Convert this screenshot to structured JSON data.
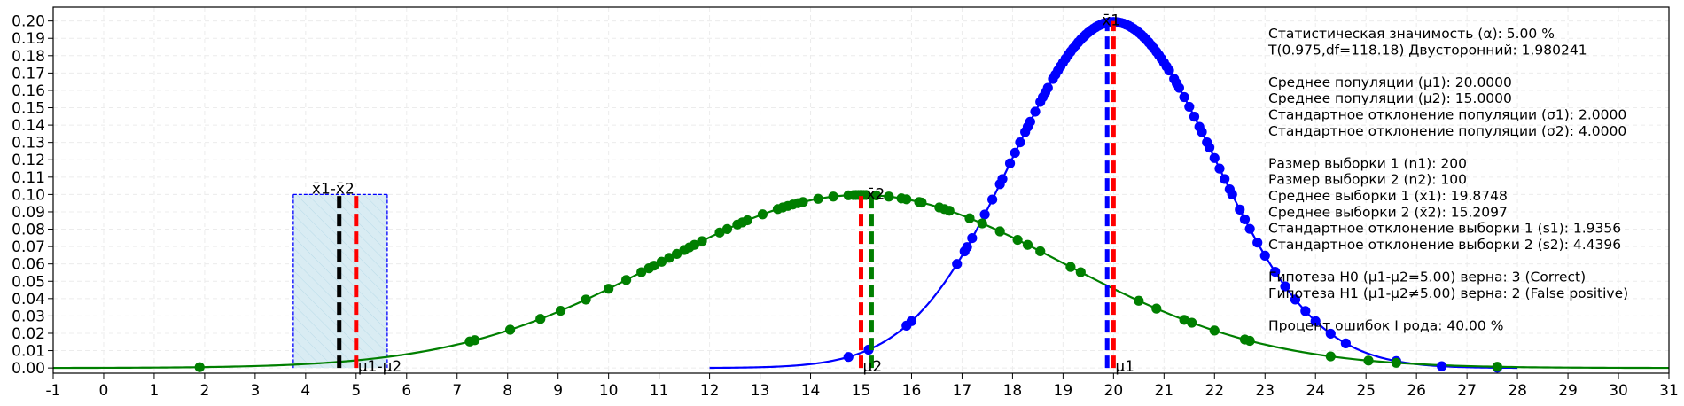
{
  "chart_data": {
    "type": "line",
    "title": "",
    "xlabel": "",
    "ylabel": "",
    "xlim": [
      -1,
      31
    ],
    "ylim": [
      -0.003,
      0.208
    ],
    "x_ticks": [
      "-1",
      "0",
      "1",
      "2",
      "3",
      "4",
      "5",
      "6",
      "7",
      "8",
      "9",
      "10",
      "11",
      "12",
      "13",
      "14",
      "15",
      "16",
      "17",
      "18",
      "19",
      "20",
      "21",
      "22",
      "23",
      "24",
      "25",
      "26",
      "27",
      "28",
      "29",
      "30",
      "31"
    ],
    "y_ticks": [
      "0.00",
      "0.01",
      "0.02",
      "0.03",
      "0.04",
      "0.05",
      "0.06",
      "0.07",
      "0.08",
      "0.09",
      "0.10",
      "0.11",
      "0.12",
      "0.13",
      "0.14",
      "0.15",
      "0.16",
      "0.17",
      "0.18",
      "0.19",
      "0.20"
    ],
    "grid": true,
    "series": [
      {
        "kind": "normal-curve",
        "color": "#0000ff",
        "mean": 20.0,
        "sd": 2.0,
        "range": [
          12,
          28
        ]
      },
      {
        "kind": "normal-curve",
        "color": "#007f00",
        "mean": 15.0,
        "sd": 4.0,
        "range": [
          -1,
          31
        ]
      },
      {
        "kind": "samples",
        "color": "#0000ff",
        "mean": 20.0,
        "sd": 2.0,
        "x": [
          14.75,
          15.15,
          15.9,
          16.0,
          16.9,
          17.05,
          17.1,
          17.2,
          17.45,
          17.6,
          17.75,
          17.8,
          17.95,
          18.05,
          18.15,
          18.25,
          18.3,
          18.35,
          18.45,
          18.55,
          18.6,
          18.65,
          18.7,
          18.8,
          18.85,
          18.9,
          18.95,
          19.0,
          19.05,
          19.1,
          19.15,
          19.2,
          19.25,
          19.3,
          19.35,
          19.4,
          19.45,
          19.5,
          19.55,
          19.6,
          19.65,
          19.7,
          19.75,
          19.8,
          19.85,
          19.9,
          19.95,
          20.0,
          20.05,
          20.1,
          20.15,
          20.2,
          20.25,
          20.3,
          20.35,
          20.4,
          20.45,
          20.5,
          20.55,
          20.6,
          20.65,
          20.7,
          20.75,
          20.8,
          20.85,
          20.9,
          20.95,
          21.0,
          21.05,
          21.1,
          21.2,
          21.25,
          21.3,
          21.4,
          21.5,
          21.6,
          21.7,
          21.75,
          21.85,
          21.9,
          22.0,
          22.1,
          22.2,
          22.3,
          22.35,
          22.5,
          22.6,
          22.7,
          22.85,
          23.0,
          23.2,
          23.4,
          23.6,
          23.8,
          24.0,
          24.3,
          24.6,
          25.6,
          26.5,
          27.6
        ]
      },
      {
        "kind": "samples",
        "color": "#007f00",
        "mean": 15.0,
        "sd": 4.0,
        "x": [
          1.9,
          7.25,
          7.35,
          8.05,
          8.65,
          9.05,
          9.55,
          10.0,
          10.35,
          10.65,
          10.8,
          10.9,
          11.05,
          11.2,
          11.35,
          11.5,
          11.6,
          11.7,
          11.85,
          12.2,
          12.35,
          12.55,
          12.65,
          12.75,
          13.05,
          13.35,
          13.45,
          13.55,
          13.65,
          13.75,
          13.85,
          14.15,
          14.45,
          14.75,
          14.85,
          14.9,
          14.95,
          15.0,
          15.05,
          15.1,
          15.3,
          15.55,
          15.8,
          15.9,
          16.15,
          16.2,
          16.55,
          16.65,
          16.75,
          17.15,
          17.4,
          17.75,
          18.1,
          18.3,
          18.55,
          19.15,
          19.35,
          20.5,
          20.85,
          21.4,
          21.55,
          22.0,
          22.6,
          22.7,
          24.3,
          25.05,
          25.6,
          27.6
        ]
      }
    ],
    "difference_region": {
      "x_from": 3.7545,
      "x_to": 5.6158,
      "height": 0.1,
      "label": "x̄1-x̄2",
      "mean_label": "μ1-μ2"
    },
    "vertical_lines": [
      {
        "x": 4.6651,
        "color": "#000000"
      },
      {
        "x": 5.0,
        "color": "#ff0000",
        "label": "μ1-μ2"
      },
      {
        "x": 15.0,
        "color": "#ff0000",
        "label": "μ2"
      },
      {
        "x": 15.2097,
        "color": "#007f00",
        "label": "x̄2"
      },
      {
        "x": 19.8748,
        "color": "#0000ff",
        "label": "x̄1"
      },
      {
        "x": 20.0,
        "color": "#ff0000",
        "label": "μ1"
      }
    ],
    "annotations": [
      "Статистическая значимость (α): 5.00 %",
      "T(0.975,df=118.18) Двусторонний: 1.980241",
      "",
      "Среднее популяции (μ1): 20.0000",
      "Среднее популяции (μ2): 15.0000",
      "Стандартное отклонение популяции (σ1): 2.0000",
      "Стандартное отклонение популяции (σ2): 4.0000",
      "",
      "Размер выборки 1 (n1): 200",
      "Размер выборки 2 (n2): 100",
      "Среднее выборки 1 (x̄1): 19.8748",
      "Среднее выборки 2 (x̄2): 15.2097",
      "Стандартное отклонение выборки 1 (s1): 1.9356",
      "Стандартное отклонение выборки 2 (s2): 4.4396",
      "",
      "Гипотеза H0 (μ1-μ2=5.00) верна: 3 (Correct)",
      "Гипотеза H1 (μ1-μ2≠5.00) верна: 2 (False positive)",
      "",
      "Процент ошибок I рода: 40.00 %"
    ]
  }
}
